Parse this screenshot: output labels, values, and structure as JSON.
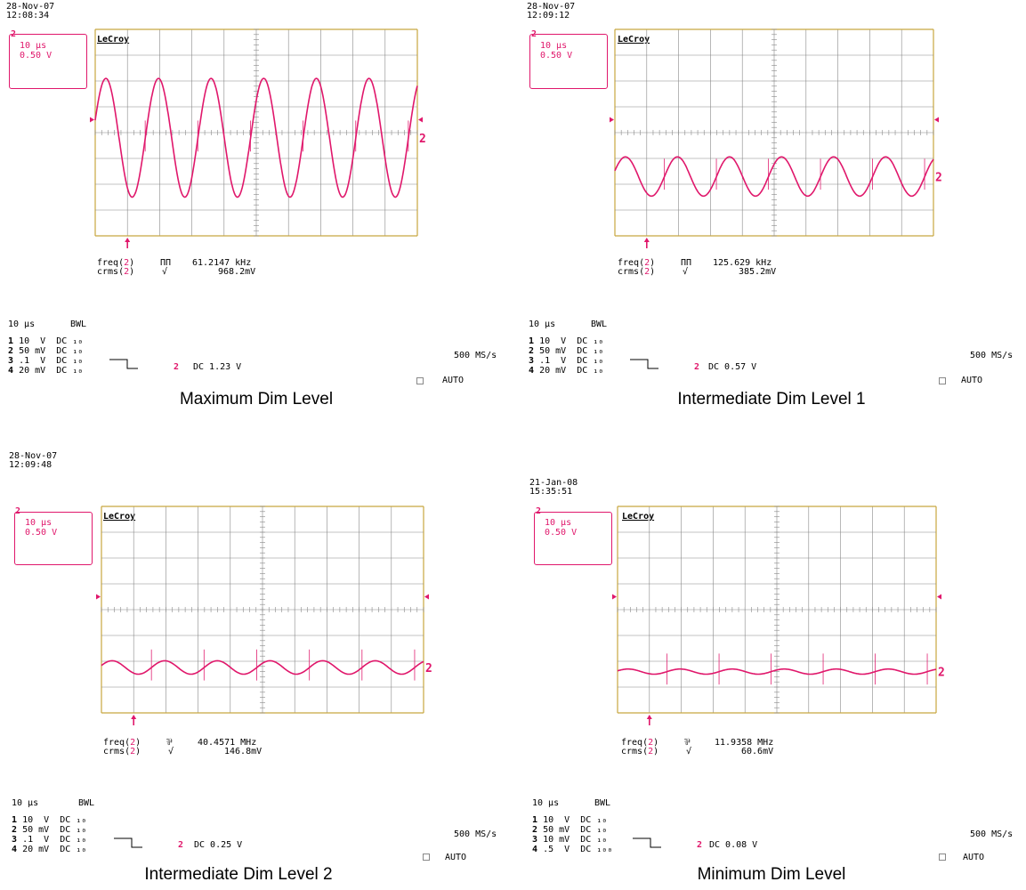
{
  "panels": [
    {
      "date": "28-Nov-07",
      "time": "12:08:34",
      "channel": "2",
      "timebase": "10 µs",
      "volts_per_div": "0.50 V",
      "logo": "LeCroy",
      "meas": {
        "freq_label": "freq(",
        "freq_ch": "2",
        "freq_icon": "ΠΠ",
        "freq_value": "61.2147 kHz",
        "crms_label": "crms(",
        "crms_ch": "2",
        "crms_icon": "√",
        "crms_value": "968.2mV"
      },
      "status": {
        "timebase": "10 µs",
        "bwl": "BWL",
        "ch_rows": [
          {
            "n": "1",
            "v": "10  V",
            "c": "DC ₁₀"
          },
          {
            "n": "2",
            "v": "50 mV",
            "c": "DC ₁₀"
          },
          {
            "n": "3",
            "v": ".1  V",
            "c": "DC ₁₀"
          },
          {
            "n": "4",
            "v": "20 mV",
            "c": "DC ₁₀"
          }
        ],
        "trig_ch": "2",
        "trig_text": "DC 1.23 V",
        "rate": "500 MS/s",
        "mode": "AUTO"
      },
      "caption": "Maximum Dim Level",
      "chart_data": {
        "type": "line",
        "xlabel": "",
        "ylabel": "",
        "x_unit": "µs",
        "y_unit": "V",
        "xlim": [
          0,
          100
        ],
        "ylim": [
          -2.0,
          2.0
        ],
        "grid": true,
        "series": [
          {
            "color": "#e0176b",
            "amplitude": 1.15,
            "offset": -0.1,
            "frequency_khz": 61.2147,
            "spikes": true
          }
        ]
      }
    },
    {
      "date": "28-Nov-07",
      "time": "12:09:12",
      "channel": "2",
      "timebase": "10 µs",
      "volts_per_div": "0.50 V",
      "logo": "LeCroy",
      "meas": {
        "freq_label": "freq(",
        "freq_ch": "2",
        "freq_icon": "ΠΠ",
        "freq_value": "125.629 kHz",
        "crms_label": "crms(",
        "crms_ch": "2",
        "crms_icon": "√",
        "crms_value": "385.2mV"
      },
      "status": {
        "timebase": "10 µs",
        "bwl": "BWL",
        "ch_rows": [
          {
            "n": "1",
            "v": "10  V",
            "c": "DC ₁₀"
          },
          {
            "n": "2",
            "v": "50 mV",
            "c": "DC ₁₀"
          },
          {
            "n": "3",
            "v": ".1  V",
            "c": "DC ₁₀"
          },
          {
            "n": "4",
            "v": "20 mV",
            "c": "DC ₁₀"
          }
        ],
        "trig_ch": "2",
        "trig_text": "DC 0.57 V",
        "rate": "500 MS/s",
        "mode": "AUTO"
      },
      "caption": "Intermediate Dim Level 1",
      "chart_data": {
        "type": "line",
        "xlabel": "",
        "ylabel": "",
        "x_unit": "µs",
        "y_unit": "V",
        "xlim": [
          0,
          100
        ],
        "ylim": [
          -2.0,
          2.0
        ],
        "grid": true,
        "series": [
          {
            "color": "#e0176b",
            "amplitude": 0.38,
            "offset": -0.85,
            "frequency_khz": 61.2,
            "spikes": true
          }
        ]
      }
    },
    {
      "date": "28-Nov-07",
      "time": "12:09:48",
      "channel": "2",
      "timebase": "10 µs",
      "volts_per_div": "0.50 V",
      "logo": "LeCroy",
      "meas": {
        "freq_label": "freq(",
        "freq_ch": "2",
        "freq_icon": "⅌",
        "freq_value": "40.4571 MHz",
        "crms_label": "crms(",
        "crms_ch": "2",
        "crms_icon": "√",
        "crms_value": "146.8mV"
      },
      "status": {
        "timebase": "10 µs",
        "bwl": "BWL",
        "ch_rows": [
          {
            "n": "1",
            "v": "10  V",
            "c": "DC ₁₀"
          },
          {
            "n": "2",
            "v": "50 mV",
            "c": "DC ₁₀"
          },
          {
            "n": "3",
            "v": ".1  V",
            "c": "DC ₁₀"
          },
          {
            "n": "4",
            "v": "20 mV",
            "c": "DC ₁₀"
          }
        ],
        "trig_ch": "2",
        "trig_text": "DC 0.25 V",
        "rate": "500 MS/s",
        "mode": "AUTO"
      },
      "caption": "Intermediate Dim Level 2",
      "chart_data": {
        "type": "line",
        "xlabel": "",
        "ylabel": "",
        "x_unit": "µs",
        "y_unit": "V",
        "xlim": [
          0,
          100
        ],
        "ylim": [
          -2.0,
          2.0
        ],
        "grid": true,
        "series": [
          {
            "color": "#e0176b",
            "amplitude": 0.13,
            "offset": -1.12,
            "frequency_khz": 61.2,
            "spikes": true
          }
        ]
      }
    },
    {
      "date": "21-Jan-08",
      "time": "15:35:51",
      "channel": "2",
      "timebase": "10 µs",
      "volts_per_div": "0.50 V",
      "logo": "LeCroy",
      "meas": {
        "freq_label": "freq(",
        "freq_ch": "2",
        "freq_icon": "⅌",
        "freq_value": "11.9358 MHz",
        "crms_label": "crms(",
        "crms_ch": "2",
        "crms_icon": "√",
        "crms_value": "60.6mV"
      },
      "status": {
        "timebase": "10 µs",
        "bwl": "BWL",
        "ch_rows": [
          {
            "n": "1",
            "v": "10  V",
            "c": "DC ₁₀"
          },
          {
            "n": "2",
            "v": "50 mV",
            "c": "DC ₁₀"
          },
          {
            "n": "3",
            "v": "10 mV",
            "c": "DC ₁₀"
          },
          {
            "n": "4",
            "v": ".5  V",
            "c": "DC ₁₀₀"
          }
        ],
        "trig_ch": "2",
        "trig_text": "DC 0.08 V",
        "rate": "500 MS/s",
        "mode": "AUTO"
      },
      "caption": "Minimum Dim Level",
      "chart_data": {
        "type": "line",
        "xlabel": "",
        "ylabel": "",
        "x_unit": "µs",
        "y_unit": "V",
        "xlim": [
          0,
          100
        ],
        "ylim": [
          -2.0,
          2.0
        ],
        "grid": true,
        "series": [
          {
            "color": "#e0176b",
            "amplitude": 0.05,
            "offset": -1.2,
            "frequency_khz": 61.2,
            "spikes": true
          }
        ]
      }
    }
  ]
}
